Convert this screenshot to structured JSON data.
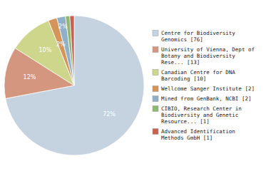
{
  "chart_data": {
    "type": "pie",
    "categories": [
      "Centre for Biodiversity\nGenomics [76]",
      "University of Vienna, Dept of\nBotany and Biodiversity\nRese... [13]",
      "Canadian Centre for DNA\nBarcoding [10]",
      "Wellcome Sanger Institute [2]",
      "Mined from GenBank, NCBI [2]",
      "CIBIO, Research Center in\nBiodiversity and Genetic\nResource... [1]",
      "Advanced Identification\nMethods GmbH [1]"
    ],
    "values": [
      72,
      12,
      10,
      2,
      2,
      1,
      1
    ],
    "value_labels": [
      "72%",
      "12%",
      "10%",
      "2%",
      "2%",
      null,
      null
    ],
    "colors": [
      "#c5d3e0",
      "#d4967f",
      "#cdd68a",
      "#d4945a",
      "#8fb0c8",
      "#8fb870",
      "#c96050"
    ],
    "data_labels": true,
    "legend": "right"
  }
}
